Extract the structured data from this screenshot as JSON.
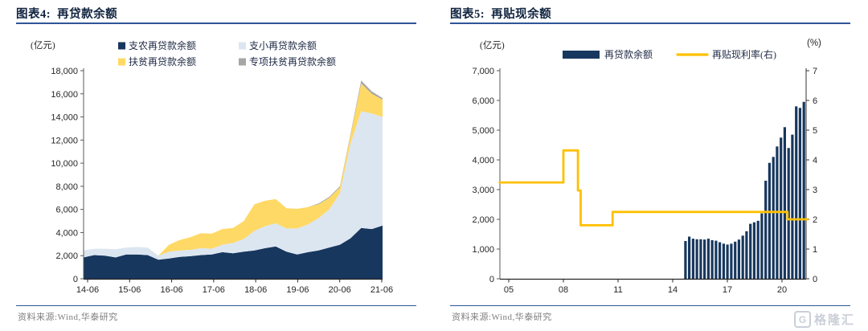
{
  "colors": {
    "navy": "#17375E",
    "light_blue": "#DCE6F1",
    "yellow": "#FFD965",
    "gray": "#A6A6A6",
    "line_yellow": "#FFC000",
    "rule_blue": "#2F5597",
    "axis_line": "#595959",
    "axis_bottom": "#262626",
    "axis_text": "#262626",
    "legend_text": "#1F2A44",
    "title_text": "#10233F",
    "source_text": "#7F7F7F",
    "watermark_gray": "#C7CDD6"
  },
  "panels": [
    {
      "title_prefix": "图表4:",
      "title": "再贷款余额",
      "unit_left": "(亿元)",
      "source": "资料来源:Wind,华泰研究"
    },
    {
      "title_prefix": "图表5:",
      "title": "再贴现余额",
      "unit_left": "(亿元)",
      "unit_right": "(%)",
      "source": "资料来源:Wind,华泰研究"
    }
  ],
  "watermark": {
    "icon": "G",
    "text": "格隆汇"
  },
  "chart_data": [
    {
      "type": "area",
      "stacked": true,
      "title": "再贷款余额",
      "ylabel": "亿元",
      "ylim": [
        0,
        18000
      ],
      "ytick_step": 2000,
      "grid": false,
      "legend_position": "top",
      "x_tick_labels": [
        "14-06",
        "15-06",
        "16-06",
        "17-06",
        "18-06",
        "19-06",
        "20-06",
        "21-06"
      ],
      "categories": [
        "14-06",
        "14-09",
        "14-12",
        "15-03",
        "15-06",
        "15-09",
        "15-12",
        "16-03",
        "16-06",
        "16-09",
        "16-12",
        "17-03",
        "17-06",
        "17-09",
        "17-12",
        "18-03",
        "18-06",
        "18-09",
        "18-12",
        "19-03",
        "19-06",
        "19-09",
        "19-12",
        "20-03",
        "20-06",
        "20-09",
        "20-12",
        "21-03",
        "21-06"
      ],
      "series": [
        {
          "name": "支农再贷款余额",
          "color_key": "navy",
          "values": [
            1850,
            2050,
            2000,
            1850,
            2100,
            2100,
            2050,
            1650,
            1750,
            1900,
            1950,
            2050,
            2100,
            2300,
            2200,
            2350,
            2450,
            2650,
            2800,
            2350,
            2100,
            2300,
            2450,
            2700,
            2950,
            3500,
            4400,
            4300,
            4600
          ]
        },
        {
          "name": "支小再贷款余额",
          "color_key": "light_blue",
          "values": [
            600,
            550,
            600,
            700,
            600,
            650,
            650,
            350,
            600,
            550,
            550,
            600,
            500,
            650,
            900,
            1100,
            1700,
            1900,
            2000,
            2000,
            2250,
            2400,
            2800,
            3300,
            4450,
            8200,
            10100,
            10000,
            9400
          ]
        },
        {
          "name": "扶贫再贷款余额",
          "color_key": "yellow",
          "values": [
            0,
            0,
            0,
            0,
            0,
            0,
            0,
            0,
            600,
            900,
            1100,
            1300,
            1300,
            1350,
            1300,
            1550,
            2300,
            2200,
            2100,
            1750,
            1700,
            1500,
            1200,
            1000,
            500,
            700,
            2400,
            1700,
            1500
          ]
        },
        {
          "name": "专项扶贫再贷款余额",
          "color_key": "gray",
          "values": [
            0,
            0,
            0,
            0,
            0,
            0,
            0,
            0,
            0,
            0,
            0,
            0,
            0,
            0,
            0,
            0,
            0,
            0,
            0,
            0,
            0,
            0,
            60,
            80,
            100,
            120,
            250,
            200,
            130
          ]
        }
      ]
    },
    {
      "type": "bar",
      "title": "再贴现余额",
      "ylabel_left": "亿元",
      "ylabel_right": "%",
      "xlim": [
        2004.5,
        2021.5
      ],
      "x_ticks": [
        2005,
        2008,
        2011,
        2014,
        2017,
        2020
      ],
      "x_tick_labels": [
        "05",
        "08",
        "11",
        "14",
        "17",
        "20"
      ],
      "ylim_left": [
        0,
        7000
      ],
      "ytick_step_left": 1000,
      "ylim_right": [
        0,
        7
      ],
      "ytick_step_right": 1,
      "grid": false,
      "legend_position": "top",
      "bar_series": {
        "name": "再贷款余额",
        "axis": "left",
        "color_key": "navy",
        "x_start": 2014.7,
        "x_end": 2021.2,
        "values": [
          1270,
          1420,
          1350,
          1330,
          1330,
          1320,
          1350,
          1300,
          1280,
          1230,
          1180,
          1150,
          1180,
          1250,
          1320,
          1450,
          1600,
          1850,
          1900,
          1950,
          2200,
          3300,
          3900,
          4100,
          4450,
          4750,
          5100,
          4400,
          4850,
          5800,
          5750,
          5950
        ]
      },
      "line_series": {
        "name": "再贴现利率(右)",
        "axis": "right",
        "color_key": "line_yellow",
        "points": [
          [
            2004.5,
            3.24
          ],
          [
            2008.0,
            3.24
          ],
          [
            2008.0,
            4.32
          ],
          [
            2008.8,
            4.32
          ],
          [
            2008.8,
            2.97
          ],
          [
            2008.95,
            2.97
          ],
          [
            2008.95,
            1.8
          ],
          [
            2010.7,
            1.8
          ],
          [
            2010.7,
            2.25
          ],
          [
            2020.3,
            2.25
          ],
          [
            2020.3,
            2.0
          ],
          [
            2021.4,
            2.0
          ]
        ]
      }
    }
  ]
}
